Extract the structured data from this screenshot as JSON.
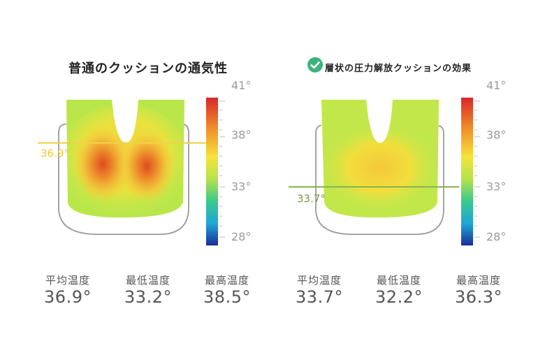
{
  "panels": [
    {
      "title": "普通のクッションの通気性",
      "line_temp": "36.9°",
      "stats": [
        {
          "label": "平均温度",
          "value": "36.9°"
        },
        {
          "label": "最低温度",
          "value": "33.2°"
        },
        {
          "label": "最高温度",
          "value": "38.5°"
        }
      ]
    },
    {
      "title": "層状の圧力解放クッションの効果",
      "line_temp": "33.7°",
      "stats": [
        {
          "label": "平均温度",
          "value": "33.7°"
        },
        {
          "label": "最低温度",
          "value": "32.2°"
        },
        {
          "label": "最高温度",
          "value": "36.3°"
        }
      ]
    }
  ],
  "scale_ticks": [
    "41°",
    "38°",
    "33°",
    "28°"
  ],
  "colors": {
    "check": "#3db37a",
    "left_line": "#efd24a",
    "right_line": "#8ab352"
  }
}
